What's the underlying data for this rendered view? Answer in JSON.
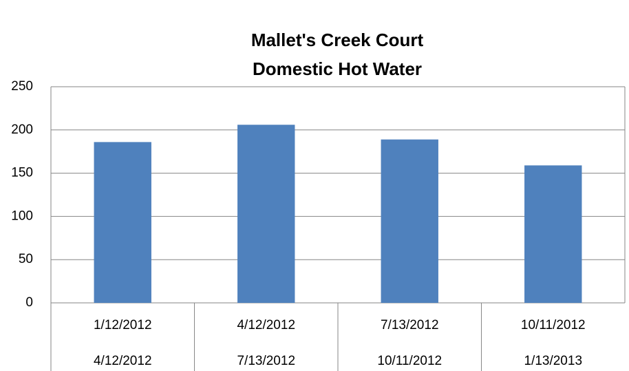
{
  "chart_data": {
    "type": "bar",
    "title": [
      "Mallet's Creek Court",
      "Domestic Hot Water"
    ],
    "categories": [
      [
        "1/12/2012",
        "4/12/2012"
      ],
      [
        "4/12/2012",
        "7/13/2012"
      ],
      [
        "7/13/2012",
        "10/11/2012"
      ],
      [
        "10/11/2012",
        "1/13/2013"
      ]
    ],
    "values": [
      186,
      206,
      189,
      159
    ],
    "color": "#4f81bd",
    "ylim": [
      0,
      250
    ],
    "yticks": [
      0,
      50,
      100,
      150,
      200,
      250
    ],
    "grid": true
  }
}
